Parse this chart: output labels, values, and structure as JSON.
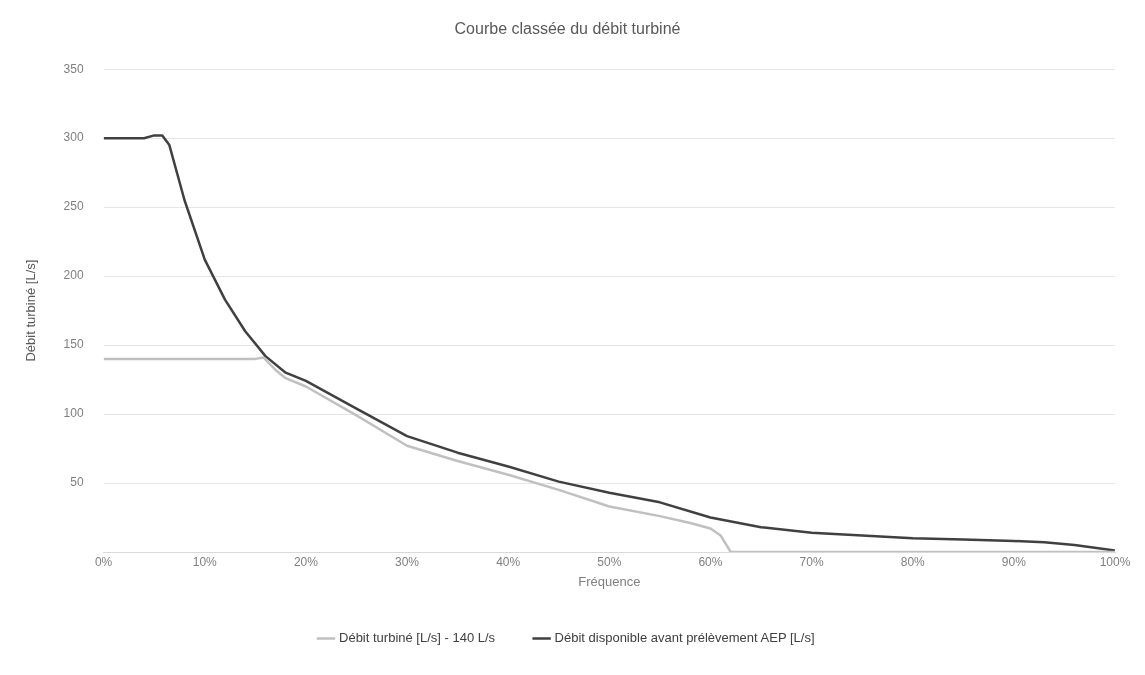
{
  "chart_data": {
    "type": "line",
    "title": "Courbe classée du débit turbiné",
    "xlabel": "Fréquence",
    "ylabel": "Débit turbiné [L/s]",
    "xlim": [
      0,
      100
    ],
    "xticks": [
      {
        "value": 0,
        "label": "0%"
      },
      {
        "value": 10,
        "label": "10%"
      },
      {
        "value": 20,
        "label": "20%"
      },
      {
        "value": 30,
        "label": "30%"
      },
      {
        "value": 40,
        "label": "40%"
      },
      {
        "value": 50,
        "label": "50%"
      },
      {
        "value": 60,
        "label": "60%"
      },
      {
        "value": 70,
        "label": "70%"
      },
      {
        "value": 80,
        "label": "80%"
      },
      {
        "value": 90,
        "label": "90%"
      },
      {
        "value": 100,
        "label": "100%"
      }
    ],
    "ylim": [
      0,
      350
    ],
    "yticks": [
      {
        "value": 0,
        "label": null
      },
      50,
      100,
      150,
      200,
      250,
      300,
      350
    ],
    "grid": "y",
    "legend": "bottom",
    "marker": "none",
    "line_style": "solid",
    "series": [
      {
        "name": "Débit turbiné [L/s] - 140 L/s",
        "color": "#c0c0c0",
        "x": [
          0,
          5,
          10,
          15,
          15.8,
          17,
          18,
          20,
          25,
          30,
          35,
          40,
          45,
          50,
          55,
          58,
          60,
          61,
          62,
          70,
          80,
          90,
          100
        ],
        "values": [
          140,
          140,
          140,
          140,
          141,
          132,
          126,
          120,
          99,
          77,
          66,
          56,
          45,
          33,
          26,
          21,
          17,
          12,
          0,
          0,
          0,
          0,
          0
        ]
      },
      {
        "name": "Débit disponible avant prélèvement AEP [L/s]",
        "color": "#404040",
        "x": [
          0,
          4,
          5,
          5.8,
          6.5,
          8,
          10,
          12,
          14,
          16,
          18,
          20,
          25,
          30,
          35,
          40,
          45,
          50,
          55,
          60,
          65,
          70,
          75,
          80,
          85,
          90,
          93,
          96,
          100
        ],
        "values": [
          300,
          300,
          302,
          302,
          295,
          255,
          212,
          183,
          160,
          142,
          130,
          124,
          104,
          84,
          72,
          62,
          51,
          43,
          36,
          25,
          18,
          14,
          12,
          10,
          9,
          8,
          7,
          5,
          1
        ]
      }
    ]
  }
}
